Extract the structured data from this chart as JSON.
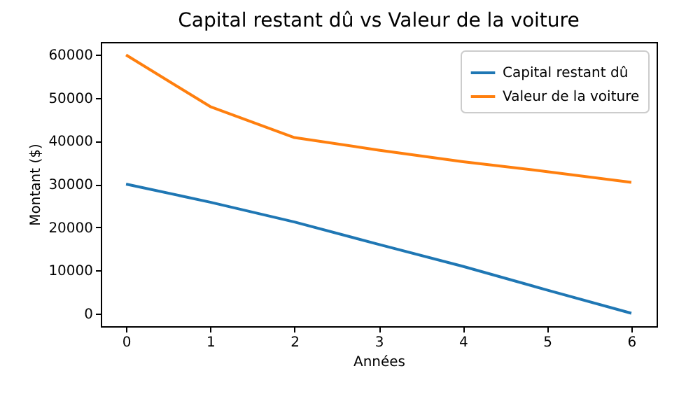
{
  "chart_data": {
    "type": "line",
    "title": "Capital restant dû vs Valeur de la voiture",
    "xlabel": "Années",
    "ylabel": "Montant ($)",
    "x": [
      0,
      1,
      2,
      3,
      4,
      5,
      6
    ],
    "series": [
      {
        "name": "Capital restant dû",
        "color": "#1f77b4",
        "values": [
          30000,
          25800,
          21200,
          16000,
          10900,
          5400,
          0
        ]
      },
      {
        "name": "Valeur de la voiture",
        "color": "#ff7f0e",
        "values": [
          60000,
          48000,
          40800,
          37900,
          35200,
          32900,
          30400
        ]
      }
    ],
    "xlim": [
      -0.3,
      6.3
    ],
    "xticks": [
      0,
      1,
      2,
      3,
      4,
      5,
      6
    ],
    "ylim": [
      -3000,
      63000
    ],
    "yticks": [
      0,
      10000,
      20000,
      30000,
      40000,
      50000,
      60000
    ],
    "legend": "top right",
    "grid": false,
    "marker": "none",
    "line_style": "solid"
  }
}
